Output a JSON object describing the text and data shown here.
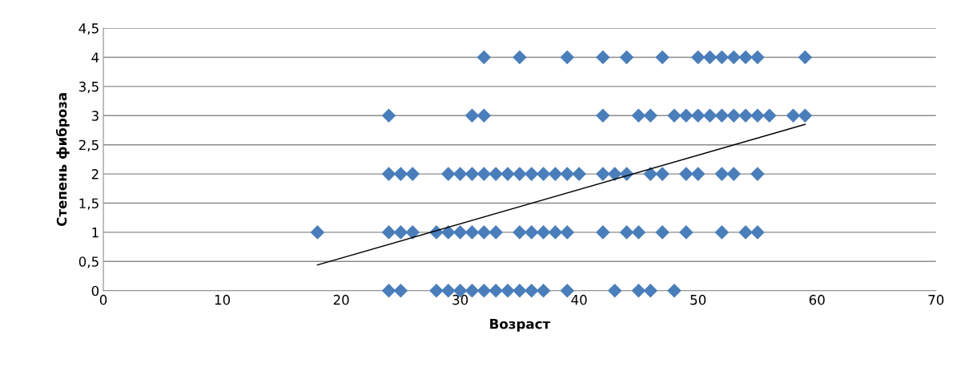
{
  "chart_data": {
    "type": "scatter",
    "xlabel": "Возраст",
    "ylabel": "Степень фиброза",
    "xlim": [
      0,
      70
    ],
    "xticks": [
      0,
      10,
      20,
      30,
      40,
      50,
      60,
      70
    ],
    "ylim": [
      0,
      4.5
    ],
    "yticks": [
      0,
      {
        "value": 0.5,
        "label": "0,5"
      },
      1,
      {
        "value": 1.5,
        "label": "1,5"
      },
      2,
      {
        "value": 2.5,
        "label": "2,5"
      },
      3,
      {
        "value": 3.5,
        "label": "3,5"
      },
      4,
      {
        "value": 4.5,
        "label": "4,5"
      }
    ],
    "grid": "y",
    "marker": "diamond",
    "series": [
      {
        "color": "#4a7ebb",
        "x": [
          24,
          25,
          28,
          29,
          30,
          31,
          32,
          33,
          34,
          35,
          36,
          37,
          39,
          43,
          45,
          46,
          48
        ],
        "values": [
          0,
          0,
          0,
          0,
          0,
          0,
          0,
          0,
          0,
          0,
          0,
          0,
          0,
          0,
          0,
          0,
          0
        ]
      },
      {
        "color": "#4a7ebb",
        "x": [
          18,
          24,
          25,
          26,
          28,
          29,
          30,
          31,
          32,
          33,
          35,
          36,
          37,
          38,
          39,
          42,
          44,
          45,
          47,
          49,
          52,
          54,
          55
        ],
        "values": [
          1,
          1,
          1,
          1,
          1,
          1,
          1,
          1,
          1,
          1,
          1,
          1,
          1,
          1,
          1,
          1,
          1,
          1,
          1,
          1,
          1,
          1,
          1
        ]
      },
      {
        "color": "#4a7ebb",
        "x": [
          24,
          25,
          26,
          29,
          30,
          31,
          32,
          33,
          34,
          35,
          36,
          37,
          38,
          39,
          40,
          42,
          43,
          44,
          46,
          47,
          49,
          50,
          52,
          53,
          55
        ],
        "values": [
          2,
          2,
          2,
          2,
          2,
          2,
          2,
          2,
          2,
          2,
          2,
          2,
          2,
          2,
          2,
          2,
          2,
          2,
          2,
          2,
          2,
          2,
          2,
          2,
          2
        ]
      },
      {
        "color": "#4a7ebb",
        "x": [
          24,
          31,
          32,
          42,
          45,
          46,
          48,
          49,
          50,
          51,
          52,
          53,
          54,
          55,
          56,
          58,
          59
        ],
        "values": [
          3,
          3,
          3,
          3,
          3,
          3,
          3,
          3,
          3,
          3,
          3,
          3,
          3,
          3,
          3,
          3,
          3
        ]
      },
      {
        "color": "#4a7ebb",
        "x": [
          32,
          35,
          39,
          42,
          44,
          47,
          50,
          51,
          52,
          53,
          54,
          55,
          59
        ],
        "values": [
          4,
          4,
          4,
          4,
          4,
          4,
          4,
          4,
          4,
          4,
          4,
          4,
          4
        ]
      },
      {
        "type": "line",
        "color": "#000000",
        "marker": "none",
        "line_style": "solid",
        "x": [
          18,
          59
        ],
        "values": [
          0.44,
          2.85
        ]
      }
    ]
  }
}
